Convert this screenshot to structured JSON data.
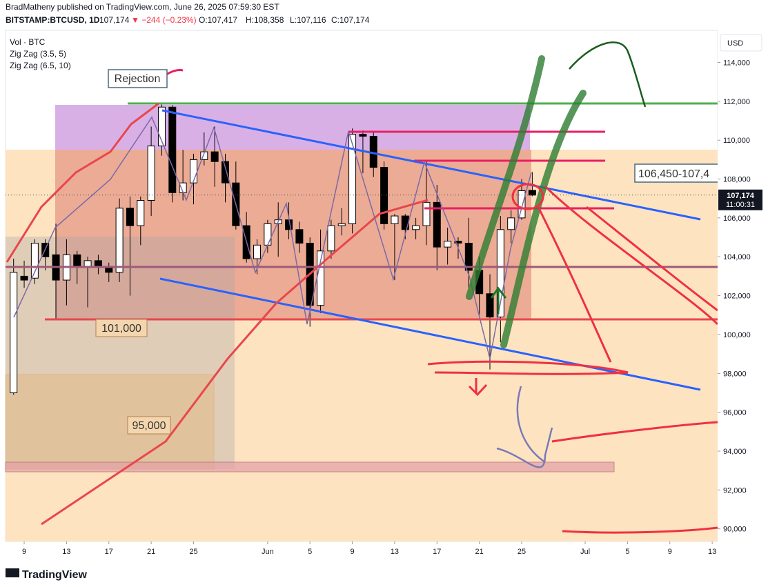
{
  "header": {
    "line1": "BradMatheny published on TradingView.com, June 26, 2025 07:59:30 EST",
    "symbol": "BITSTAMP:BTCUSD, 1D",
    "last": "107,174",
    "change": "▼ −244 (−0.23%)",
    "open": "O:107,417",
    "high": "H:108,358",
    "low": "L:107,116",
    "close": "C:107,174"
  },
  "indicators": [
    "Vol · BTC",
    "Zig Zag (3.5, 5)",
    "Zig Zag (6.5, 10)"
  ],
  "footer": "TradingView",
  "chart_data": {
    "type": "candlestick",
    "currency": "USD",
    "annotations": [
      "Rejection",
      "101,000",
      "95,000",
      "106,450-107,4"
    ],
    "price_label": "107,174",
    "countdown": "11:00:31",
    "categories": [
      "8",
      "9",
      "10",
      "11",
      "12",
      "13",
      "14",
      "15",
      "16",
      "17",
      "18",
      "19",
      "20",
      "21",
      "22",
      "23",
      "24",
      "25",
      "26",
      "27",
      "28",
      "29",
      "30",
      "31",
      "1",
      "2",
      "3",
      "4",
      "5",
      "6",
      "7",
      "8",
      "9",
      "10",
      "11",
      "12",
      "13",
      "14",
      "15",
      "16",
      "17",
      "18",
      "19",
      "20",
      "21",
      "22",
      "23",
      "24",
      "25",
      "26"
    ],
    "open": [
      97000,
      103000,
      102900,
      104700,
      104100,
      102800,
      104100,
      103500,
      103800,
      103500,
      103200,
      106500,
      105600,
      106900,
      109700,
      111700,
      107300,
      107800,
      109000,
      109400,
      108900,
      107800,
      105600,
      103900,
      104600,
      105700,
      105900,
      105400,
      104700,
      101500,
      104300,
      105600,
      105700,
      110300,
      110200,
      108600,
      105700,
      106100,
      105400,
      105600,
      106800,
      104500,
      104800,
      104700,
      103300,
      102100,
      100900,
      105400,
      106000,
      107417
    ],
    "high": [
      103900,
      103800,
      104900,
      104900,
      105700,
      104900,
      104300,
      104000,
      104100,
      103700,
      107000,
      107100,
      107100,
      110700,
      111900,
      111800,
      109500,
      109300,
      110400,
      110700,
      109300,
      108900,
      106300,
      104900,
      105900,
      106800,
      106800,
      105800,
      105000,
      105400,
      105900,
      106500,
      110600,
      110500,
      110400,
      108900,
      106200,
      106200,
      106000,
      108900,
      107700,
      105500,
      105000,
      106000,
      104000,
      103100,
      106100,
      106400,
      108000,
      108358
    ],
    "low": [
      96900,
      102400,
      102600,
      103300,
      100800,
      101500,
      102600,
      101400,
      103100,
      102700,
      102700,
      102000,
      104600,
      106100,
      109200,
      106800,
      106900,
      106700,
      108700,
      107600,
      106800,
      105400,
      103700,
      103100,
      104200,
      104000,
      104900,
      104200,
      100400,
      101100,
      103900,
      105100,
      105200,
      108300,
      108100,
      105400,
      102800,
      104900,
      104900,
      104600,
      103300,
      103600,
      103900,
      102400,
      101000,
      98200,
      99600,
      104700,
      105900,
      107116
    ],
    "close": [
      103200,
      102800,
      104700,
      104000,
      102800,
      104100,
      103500,
      103800,
      103500,
      103200,
      106500,
      105600,
      106900,
      109700,
      111700,
      107300,
      107800,
      109000,
      109400,
      108900,
      107800,
      105600,
      103900,
      104600,
      105700,
      105900,
      105400,
      104700,
      101500,
      104300,
      105600,
      105700,
      110300,
      110200,
      108600,
      105700,
      106100,
      105400,
      105600,
      106800,
      104500,
      104800,
      104700,
      103300,
      102100,
      100900,
      105400,
      106000,
      107400,
      107174
    ],
    "up_color": "#ffffff",
    "down_color": "#000000",
    "ylim": [
      89350,
      115650
    ],
    "yticks": [
      {
        "value": 90000,
        "label": "90,000"
      },
      {
        "value": 92000,
        "label": "92,000"
      },
      {
        "value": 94000,
        "label": "94,000"
      },
      {
        "value": 96000,
        "label": "96,000"
      },
      {
        "value": 98000,
        "label": "98,000"
      },
      {
        "value": 100000,
        "label": "100,000"
      },
      {
        "value": 102000,
        "label": "102,000"
      },
      {
        "value": 104000,
        "label": "104,000"
      },
      {
        "value": 106000,
        "label": "106,000"
      },
      {
        "value": 108000,
        "label": "108,000"
      },
      {
        "value": 110000,
        "label": "110,000"
      },
      {
        "value": 112000,
        "label": "112,000"
      },
      {
        "value": 114000,
        "label": "114,000"
      }
    ],
    "xticks": [
      {
        "value": 1,
        "label": "9"
      },
      {
        "value": 5,
        "label": "13"
      },
      {
        "value": 9,
        "label": "17"
      },
      {
        "value": 13,
        "label": "21"
      },
      {
        "value": 17,
        "label": "25"
      },
      {
        "value": 24,
        "label": "Jun"
      },
      {
        "value": 28,
        "label": "5"
      },
      {
        "value": 32,
        "label": "9"
      },
      {
        "value": 36,
        "label": "13"
      },
      {
        "value": 40,
        "label": "17"
      },
      {
        "value": 44,
        "label": "21"
      },
      {
        "value": 48,
        "label": "25"
      },
      {
        "value": 54,
        "label": "Jul"
      },
      {
        "value": 58,
        "label": "5"
      },
      {
        "value": 62,
        "label": "9"
      },
      {
        "value": 66,
        "label": "13"
      }
    ]
  }
}
